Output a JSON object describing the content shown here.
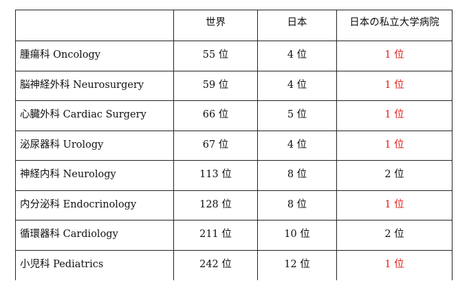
{
  "table": {
    "headers": [
      "",
      "世界",
      "日本",
      "日本の私立大学病院"
    ],
    "rows": [
      {
        "department": "腫瘍科  Oncology",
        "world": "55 位",
        "japan": "4 位",
        "private": "1 位",
        "private_is_top": true
      },
      {
        "department": "脳神経外科  Neurosurgery",
        "world": "59 位",
        "japan": "4 位",
        "private": "1 位",
        "private_is_top": true
      },
      {
        "department": "心臓外科  Cardiac Surgery",
        "world": "66 位",
        "japan": "5 位",
        "private": "1 位",
        "private_is_top": true
      },
      {
        "department": "泌尿器科  Urology",
        "world": "67 位",
        "japan": "4 位",
        "private": "1 位",
        "private_is_top": true
      },
      {
        "department": "神経内科  Neurology",
        "world": "113 位",
        "japan": "8 位",
        "private": "2 位",
        "private_is_top": false
      },
      {
        "department": "内分泌科  Endocrinology",
        "world": "128 位",
        "japan": "8 位",
        "private": "1 位",
        "private_is_top": true
      },
      {
        "department": "循環器科  Cardiology",
        "world": "211 位",
        "japan": "10 位",
        "private": "2 位",
        "private_is_top": false
      },
      {
        "department": "小児科  Pediatrics",
        "world": "242 位",
        "japan": "12 位",
        "private": "1 位",
        "private_is_top": true
      }
    ]
  },
  "colors": {
    "top_rank_color": "#e0201a",
    "text_color": "#111111",
    "border_color": "#222222"
  }
}
